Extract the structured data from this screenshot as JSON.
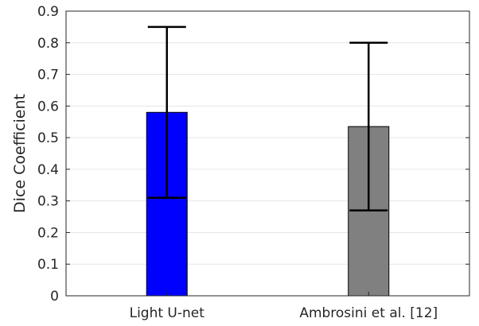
{
  "chart_data": {
    "type": "bar",
    "categories": [
      "Light U-net",
      "Ambrosini et al. [12]"
    ],
    "values": [
      0.58,
      0.535
    ],
    "error_low": [
      0.31,
      0.27
    ],
    "error_high": [
      0.85,
      0.8
    ],
    "colors": [
      "#0000FF",
      "#808080"
    ],
    "title": "",
    "xlabel": "",
    "ylabel": "Dice Coefficient",
    "ylim": [
      0,
      0.9
    ],
    "yticks": [
      "0",
      "0.1",
      "0.2",
      "0.3",
      "0.4",
      "0.5",
      "0.6",
      "0.7",
      "0.8",
      "0.9"
    ],
    "grid": true
  }
}
